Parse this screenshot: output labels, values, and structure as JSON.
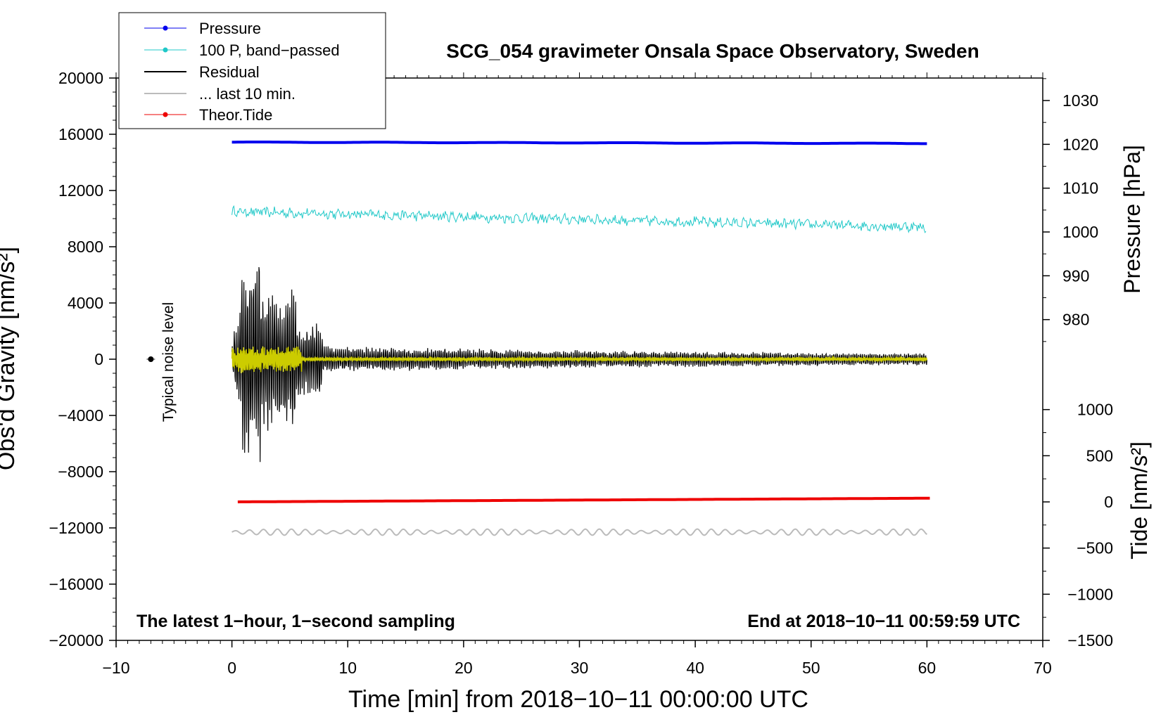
{
  "chart_data": {
    "type": "line",
    "title": "SCG_054 gravimeter Onsala Space Observatory, Sweden",
    "xlabel": "Time [min] from 2018−10−11 00:00:00 UTC",
    "ylabel_left": "Obs'd Gravity [nm/s²]",
    "ylabel_pressure": "Pressure [hPa]",
    "ylabel_tide": "Tide [nm/s²]",
    "xlim": [
      -10,
      70
    ],
    "ylim": [
      -20000,
      20000
    ],
    "pressure_axis_ticks": [
      980,
      990,
      1000,
      1010,
      1020,
      1030
    ],
    "tide_axis_ticks": [
      -1500,
      -1000,
      -500,
      0,
      500,
      1000
    ],
    "x_ticks": [
      "−10",
      "0",
      "10",
      "20",
      "30",
      "40",
      "50",
      "60",
      "70"
    ],
    "y_ticks": [
      "20000",
      "16000",
      "12000",
      "8000",
      "4000",
      "0",
      "−4000",
      "−8000",
      "−12000",
      "−16000",
      "−20000"
    ],
    "pressure_tick_labels": [
      "1030",
      "1020",
      "1010",
      "1000",
      "990",
      "980"
    ],
    "tide_tick_labels": [
      "1000",
      "500",
      "0",
      "−500",
      "−1000",
      "−1500"
    ],
    "legend": [
      "Pressure",
      "100 P, band−passed",
      "Residual",
      "... last 10 min.",
      "Theor.Tide"
    ],
    "legend_position": "top-left",
    "annotation_noise": "Typical noise level",
    "note_left": "The latest 1−hour, 1−second sampling",
    "note_right": "End at 2018−10−11 00:59:59 UTC",
    "series": [
      {
        "name": "Pressure",
        "color": "#0000ee",
        "axis": "pressure",
        "start": 1020.5,
        "end": 1020.2,
        "x_range": [
          0,
          60
        ]
      },
      {
        "name": "100 P, band−passed",
        "color": "#20c8c8",
        "axis": "gravity",
        "start": 10500,
        "end": 9400,
        "x_range": [
          0,
          60
        ]
      },
      {
        "name": "Residual",
        "color": "#000000",
        "axis": "gravity",
        "peak": 8300,
        "trough": -8700,
        "baseline": 0,
        "x_range": [
          0,
          60
        ]
      },
      {
        "name": "... last 10 min.",
        "color": "#bbbbbb",
        "axis": "gravity",
        "baseline": -12300,
        "x_range": [
          0,
          60
        ]
      },
      {
        "name": "Theor.Tide",
        "color": "#ee0000",
        "axis": "tide",
        "start": 0,
        "end": 40,
        "x_range": [
          0,
          60
        ]
      }
    ],
    "yellow_overlay_color": "#cccc00",
    "noise_point": {
      "x": -7,
      "y": 0
    }
  }
}
